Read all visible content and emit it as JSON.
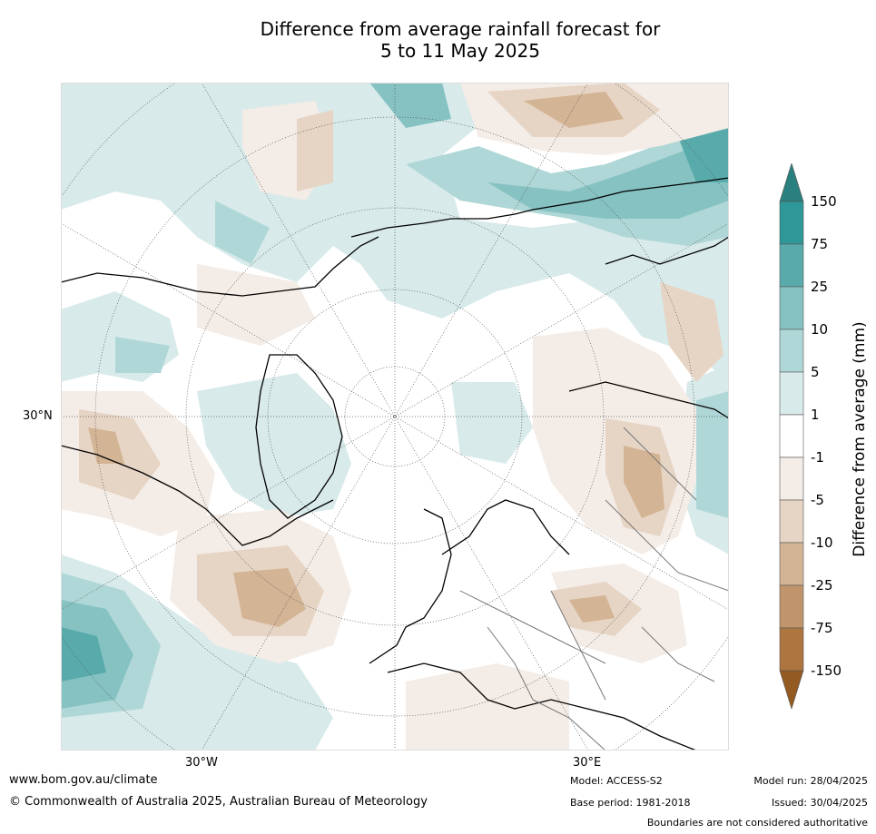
{
  "title_line1": "Difference from average rainfall forecast for",
  "title_line2": "5 to 11 May 2025",
  "map": {
    "lat_label": "30°N",
    "lon_labels": [
      "30°W",
      "30°E"
    ]
  },
  "legend": {
    "title": "Difference from average (mm)",
    "ticks": [
      "150",
      "75",
      "25",
      "10",
      "5",
      "1",
      "-1",
      "-5",
      "-10",
      "-25",
      "-75",
      "-150"
    ],
    "colors": [
      "#2a7f7f",
      "#2f9797",
      "#59abab",
      "#86c2c2",
      "#b0d7d7",
      "#d8eaea",
      "#ffffff",
      "#f4ece6",
      "#e6d4c4",
      "#d3b494",
      "#c1956c",
      "#ad7540",
      "#935a22"
    ]
  },
  "footer": {
    "website": "www.bom.gov.au/climate",
    "copyright": "© Commonwealth of Australia 2025, Australian Bureau of Meteorology",
    "model": "Model: ACCESS-S2",
    "base_period": "Base period: 1981-2018",
    "model_run": "Model run: 28/04/2025",
    "issued": "Issued: 30/04/2025",
    "disclaimer": "Boundaries are not considered authoritative"
  }
}
